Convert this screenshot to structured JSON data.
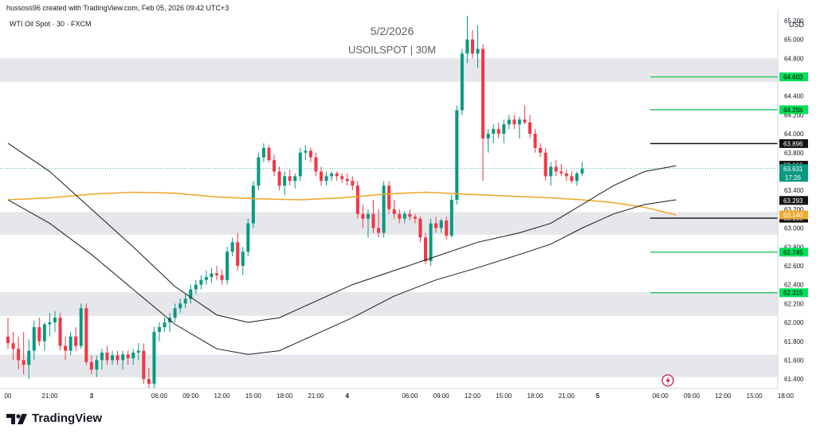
{
  "header": {
    "credit": "hussoss96 created with TradingView.com, Feb 05, 2026 09:42 UTC+3",
    "symbol": "WTI Oil Spot · 30 · FXCM",
    "currency": "USD"
  },
  "watermark": {
    "date": "5/2/2026",
    "symbol": "USOILSPOT | 30M"
  },
  "brand": "TradingView",
  "colors": {
    "up": "#089981",
    "down": "#f23645",
    "zone": "#e6e7eb",
    "green_line": "#22c55e",
    "label_green": "#00e05a",
    "ma_slow": "#f0a830",
    "ma": "#1a1a1a",
    "last": "#089981"
  },
  "chart_data": {
    "type": "candlestick",
    "title": "USOILSPOT | 30M",
    "subtitle": "5/2/2026",
    "ylim": [
      61.3,
      65.3
    ],
    "y_ticks": [
      61.4,
      61.6,
      61.8,
      62.0,
      62.2,
      62.4,
      62.6,
      62.8,
      63.0,
      63.2,
      63.4,
      63.6,
      63.8,
      64.0,
      64.2,
      64.4,
      64.6,
      64.8,
      65.0,
      65.2
    ],
    "y_tick_labels": [
      "61.400",
      "61.600",
      "61.800",
      "62.000",
      "62.200",
      "62.400",
      "62.600",
      "62.800",
      "63.000",
      "63.200",
      "63.400",
      "63.600",
      "63.800",
      "64.000",
      "64.200",
      "64.400",
      "64.600",
      "64.800",
      "65.000",
      "65.200"
    ],
    "x_labels": [
      "00",
      "21:00",
      "3",
      "06:00",
      "09:00",
      "12:00",
      "15:00",
      "18:00",
      "21:00",
      "4",
      "06:00",
      "09:00",
      "12:00",
      "15:00",
      "18:00",
      "21:00",
      "5",
      "06:00",
      "09:00",
      "12:00",
      "15:00",
      "18:00"
    ],
    "x_label_bar_index": [
      0,
      8,
      16,
      29,
      35,
      41,
      47,
      53,
      59,
      65,
      77,
      83,
      89,
      95,
      101,
      107,
      113,
      125,
      131,
      137,
      143,
      149
    ],
    "zones": [
      [
        64.55,
        64.8
      ],
      [
        62.93,
        63.17
      ],
      [
        62.07,
        62.32
      ],
      [
        61.42,
        61.66
      ]
    ],
    "levels": [
      {
        "value": 64.603,
        "label": "64.603",
        "color": "green"
      },
      {
        "value": 64.255,
        "label": "64.255",
        "color": "green"
      },
      {
        "value": 63.896,
        "label": "63.896",
        "color": "black"
      },
      {
        "value": 63.105,
        "label": "63.105",
        "color": "black"
      },
      {
        "value": 62.745,
        "label": "62.745",
        "color": "green"
      },
      {
        "value": 62.315,
        "label": "62.315",
        "color": "green"
      }
    ],
    "price_tags": [
      {
        "value": 63.666,
        "label": "63.666",
        "style": "ma"
      },
      {
        "value": 63.631,
        "label": "63.631",
        "sub": "17:26",
        "style": "last"
      },
      {
        "value": 63.293,
        "label": "63.293",
        "style": "ma"
      },
      {
        "value": 63.14,
        "label": "63.140",
        "style": "ma_slow"
      }
    ],
    "last_price": 63.631,
    "ohlc": [
      [
        61.85,
        62.05,
        61.72,
        61.78
      ],
      [
        61.78,
        61.9,
        61.6,
        61.72
      ],
      [
        61.72,
        61.85,
        61.5,
        61.6
      ],
      [
        61.6,
        61.9,
        61.45,
        61.55
      ],
      [
        61.55,
        61.82,
        61.4,
        61.7
      ],
      [
        61.7,
        62.02,
        61.6,
        61.95
      ],
      [
        61.95,
        62.05,
        61.75,
        61.8
      ],
      [
        61.8,
        62.0,
        61.7,
        61.98
      ],
      [
        61.98,
        62.1,
        61.85,
        62.0
      ],
      [
        62.0,
        62.12,
        61.9,
        62.05
      ],
      [
        62.05,
        62.1,
        61.7,
        61.75
      ],
      [
        61.75,
        61.85,
        61.6,
        61.7
      ],
      [
        61.7,
        61.9,
        61.65,
        61.85
      ],
      [
        61.85,
        61.95,
        61.7,
        61.75
      ],
      [
        61.75,
        62.2,
        61.72,
        62.15
      ],
      [
        62.15,
        62.2,
        61.55,
        61.58
      ],
      [
        61.58,
        61.65,
        61.45,
        61.5
      ],
      [
        61.5,
        61.65,
        61.42,
        61.6
      ],
      [
        61.6,
        61.72,
        61.5,
        61.68
      ],
      [
        61.68,
        61.75,
        61.55,
        61.6
      ],
      [
        61.6,
        61.7,
        61.55,
        61.65
      ],
      [
        61.65,
        61.7,
        61.55,
        61.6
      ],
      [
        61.6,
        61.7,
        61.5,
        61.66
      ],
      [
        61.66,
        61.7,
        61.55,
        61.62
      ],
      [
        61.62,
        61.72,
        61.55,
        61.68
      ],
      [
        61.68,
        61.78,
        61.6,
        61.7
      ],
      [
        61.7,
        61.78,
        61.35,
        61.4
      ],
      [
        61.4,
        61.52,
        61.3,
        61.35
      ],
      [
        61.35,
        61.95,
        61.3,
        61.9
      ],
      [
        61.9,
        62.0,
        61.8,
        61.95
      ],
      [
        61.95,
        62.05,
        61.9,
        62.0
      ],
      [
        62.0,
        62.1,
        61.9,
        62.05
      ],
      [
        62.05,
        62.2,
        62.0,
        62.15
      ],
      [
        62.15,
        62.25,
        62.1,
        62.2
      ],
      [
        62.2,
        62.3,
        62.15,
        62.25
      ],
      [
        62.25,
        62.4,
        62.2,
        62.35
      ],
      [
        62.35,
        62.45,
        62.3,
        62.4
      ],
      [
        62.4,
        62.5,
        62.35,
        62.45
      ],
      [
        62.45,
        62.55,
        62.4,
        62.48
      ],
      [
        62.48,
        62.58,
        62.42,
        62.52
      ],
      [
        62.52,
        62.6,
        62.45,
        62.5
      ],
      [
        62.5,
        62.56,
        62.4,
        62.45
      ],
      [
        62.45,
        62.8,
        62.4,
        62.75
      ],
      [
        62.75,
        62.9,
        62.7,
        62.85
      ],
      [
        62.85,
        62.95,
        62.55,
        62.6
      ],
      [
        62.6,
        62.8,
        62.5,
        62.75
      ],
      [
        62.75,
        63.1,
        62.7,
        63.05
      ],
      [
        63.05,
        63.5,
        63.0,
        63.45
      ],
      [
        63.45,
        63.8,
        63.4,
        63.75
      ],
      [
        63.75,
        63.9,
        63.7,
        63.85
      ],
      [
        63.85,
        63.88,
        63.7,
        63.72
      ],
      [
        63.72,
        63.78,
        63.55,
        63.6
      ],
      [
        63.6,
        63.65,
        63.4,
        63.45
      ],
      [
        63.45,
        63.6,
        63.35,
        63.55
      ],
      [
        63.55,
        63.62,
        63.45,
        63.5
      ],
      [
        63.5,
        63.58,
        63.42,
        63.55
      ],
      [
        63.55,
        63.85,
        63.5,
        63.8
      ],
      [
        63.8,
        63.88,
        63.72,
        63.82
      ],
      [
        63.82,
        63.85,
        63.7,
        63.75
      ],
      [
        63.75,
        63.8,
        63.55,
        63.6
      ],
      [
        63.6,
        63.65,
        63.45,
        63.5
      ],
      [
        63.5,
        63.6,
        63.45,
        63.55
      ],
      [
        63.55,
        63.6,
        63.5,
        63.58
      ],
      [
        63.58,
        63.6,
        63.5,
        63.55
      ],
      [
        63.55,
        63.58,
        63.48,
        63.52
      ],
      [
        63.52,
        63.58,
        63.45,
        63.5
      ],
      [
        63.5,
        63.55,
        63.4,
        63.45
      ],
      [
        63.45,
        63.5,
        63.1,
        63.15
      ],
      [
        63.15,
        63.25,
        63.0,
        63.1
      ],
      [
        63.1,
        63.2,
        62.9,
        63.15
      ],
      [
        63.15,
        63.3,
        62.95,
        63.0
      ],
      [
        63.0,
        63.2,
        62.9,
        62.95
      ],
      [
        62.95,
        63.5,
        62.9,
        63.45
      ],
      [
        63.45,
        63.5,
        63.15,
        63.2
      ],
      [
        63.2,
        63.3,
        63.1,
        63.15
      ],
      [
        63.15,
        63.2,
        63.05,
        63.1
      ],
      [
        63.1,
        63.18,
        63.05,
        63.15
      ],
      [
        63.15,
        63.2,
        63.08,
        63.12
      ],
      [
        63.12,
        63.15,
        63.05,
        63.1
      ],
      [
        63.1,
        63.12,
        62.85,
        62.9
      ],
      [
        62.9,
        62.95,
        62.62,
        62.65
      ],
      [
        62.65,
        63.1,
        62.6,
        63.05
      ],
      [
        63.05,
        63.12,
        62.95,
        63.0
      ],
      [
        63.0,
        63.1,
        62.95,
        63.08
      ],
      [
        63.08,
        63.12,
        62.88,
        62.92
      ],
      [
        62.92,
        63.35,
        62.9,
        63.3
      ],
      [
        63.3,
        64.3,
        63.25,
        64.25
      ],
      [
        64.25,
        64.9,
        64.2,
        64.85
      ],
      [
        64.85,
        65.25,
        64.75,
        65.0
      ],
      [
        65.0,
        65.1,
        64.8,
        64.85
      ],
      [
        64.85,
        65.15,
        64.7,
        64.9
      ],
      [
        64.9,
        64.95,
        63.5,
        63.95
      ],
      [
        63.95,
        64.05,
        63.8,
        64.0
      ],
      [
        64.0,
        64.1,
        63.9,
        64.05
      ],
      [
        64.05,
        64.12,
        63.95,
        64.0
      ],
      [
        64.0,
        64.15,
        63.9,
        64.1
      ],
      [
        64.1,
        64.2,
        64.05,
        64.15
      ],
      [
        64.15,
        64.2,
        64.05,
        64.1
      ],
      [
        64.1,
        64.18,
        63.95,
        64.15
      ],
      [
        64.15,
        64.3,
        64.1,
        64.12
      ],
      [
        64.12,
        64.2,
        63.95,
        64.0
      ],
      [
        64.0,
        64.05,
        63.8,
        63.85
      ],
      [
        63.85,
        63.9,
        63.75,
        63.8
      ],
      [
        63.8,
        63.85,
        63.5,
        63.55
      ],
      [
        63.55,
        63.7,
        63.45,
        63.65
      ],
      [
        63.65,
        63.72,
        63.55,
        63.6
      ],
      [
        63.6,
        63.68,
        63.55,
        63.58
      ],
      [
        63.58,
        63.62,
        63.5,
        63.55
      ],
      [
        63.55,
        63.6,
        63.48,
        63.5
      ],
      [
        63.5,
        63.6,
        63.45,
        63.58
      ],
      [
        63.58,
        63.7,
        63.55,
        63.63
      ]
    ],
    "ma": [
      [
        0,
        63.9
      ],
      [
        8,
        63.6
      ],
      [
        16,
        63.2
      ],
      [
        24,
        62.8
      ],
      [
        32,
        62.38
      ],
      [
        40,
        62.08
      ],
      [
        46,
        62.0
      ],
      [
        52,
        62.05
      ],
      [
        58,
        62.2
      ],
      [
        66,
        62.4
      ],
      [
        74,
        62.55
      ],
      [
        82,
        62.7
      ],
      [
        90,
        62.85
      ],
      [
        98,
        62.95
      ],
      [
        104,
        63.05
      ],
      [
        110,
        63.25
      ],
      [
        116,
        63.45
      ],
      [
        122,
        63.6
      ],
      [
        128,
        63.66
      ]
    ],
    "ma2": [
      [
        0,
        63.3
      ],
      [
        8,
        63.05
      ],
      [
        16,
        62.72
      ],
      [
        24,
        62.35
      ],
      [
        32,
        61.98
      ],
      [
        40,
        61.72
      ],
      [
        46,
        61.66
      ],
      [
        52,
        61.7
      ],
      [
        58,
        61.85
      ],
      [
        66,
        62.05
      ],
      [
        74,
        62.28
      ],
      [
        82,
        62.45
      ],
      [
        90,
        62.58
      ],
      [
        98,
        62.72
      ],
      [
        104,
        62.83
      ],
      [
        110,
        63.0
      ],
      [
        116,
        63.15
      ],
      [
        122,
        63.25
      ],
      [
        128,
        63.3
      ]
    ],
    "ma_slow": [
      [
        0,
        63.3
      ],
      [
        8,
        63.32
      ],
      [
        16,
        63.36
      ],
      [
        24,
        63.38
      ],
      [
        32,
        63.37
      ],
      [
        40,
        63.33
      ],
      [
        48,
        63.31
      ],
      [
        56,
        63.3
      ],
      [
        64,
        63.32
      ],
      [
        72,
        63.36
      ],
      [
        80,
        63.38
      ],
      [
        88,
        63.36
      ],
      [
        96,
        63.34
      ],
      [
        104,
        63.32
      ],
      [
        110,
        63.3
      ],
      [
        116,
        63.27
      ],
      [
        122,
        63.22
      ],
      [
        128,
        63.14
      ]
    ]
  }
}
